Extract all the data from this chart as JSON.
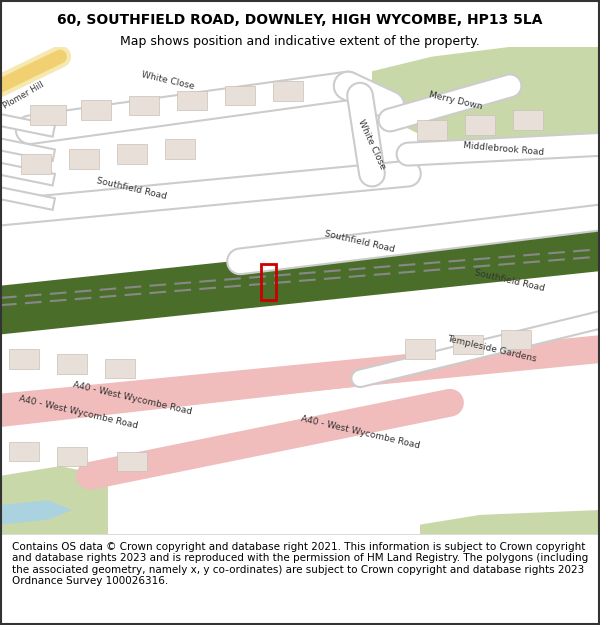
{
  "title_line1": "60, SOUTHFIELD ROAD, DOWNLEY, HIGH WYCOMBE, HP13 5LA",
  "title_line2": "Map shows position and indicative extent of the property.",
  "footer_text": "Contains OS data © Crown copyright and database right 2021. This information is subject to Crown copyright and database rights 2023 and is reproduced with the permission of HM Land Registry. The polygons (including the associated geometry, namely x, y co-ordinates) are subject to Crown copyright and database rights 2023 Ordnance Survey 100026316.",
  "title_fontsize": 10,
  "subtitle_fontsize": 9,
  "footer_fontsize": 7.5,
  "bg_color": "#ffffff",
  "title_color": "#000000",
  "border_color": "#000000",
  "map_colors": {
    "background": "#f2efe9",
    "road_fill": "#ffffff",
    "road_stroke": "#cccccc",
    "green_area": "#b5cb8b",
    "dark_green": "#5a7a3a",
    "railway_green": "#4a6e2a",
    "pink_road": "#f5c6c6",
    "yellow_road": "#f5e6a0",
    "building": "#d9d0c9",
    "plot_outline": "#cc0000",
    "water": "#aad3df",
    "light_green": "#c8d8a8"
  }
}
